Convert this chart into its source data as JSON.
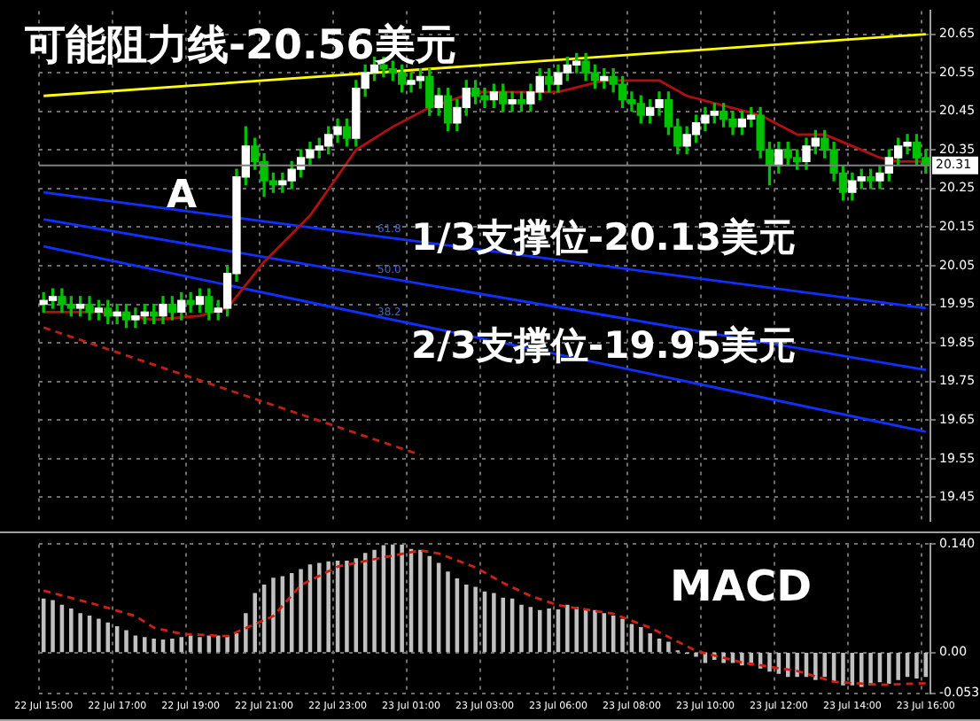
{
  "chart_data": [
    {
      "type": "candlestick",
      "color": "#00c000",
      "colors": [
        "#ffffff",
        "#ffffff",
        "#00c000",
        "#00c000",
        "#ffffff",
        "#00c000",
        "#ffffff",
        "#00c000",
        "#ffffff",
        "#00c000",
        "#ffffff",
        "#ffffff",
        "#00c000",
        "#ffffff",
        "#00c000",
        "#ffffff",
        "#00c000",
        "#ffffff",
        "#00c000",
        "#ffffff",
        "#ffffff",
        "#ffffff",
        "#ffffff",
        "#00c000",
        "#00c000",
        "#00c000",
        "#ffffff",
        "#ffffff",
        "#ffffff",
        "#ffffff",
        "#ffffff",
        "#ffffff",
        "#ffffff",
        "#00c000",
        "#ffffff",
        "#ffffff",
        "#ffffff",
        "#00c000",
        "#00c000",
        "#00c000",
        "#ffffff",
        "#ffffff",
        "#00c000",
        "#ffffff",
        "#00c000",
        "#ffffff",
        "#ffffff",
        "#00c000",
        "#00c000",
        "#ffffff",
        "#00c000",
        "#ffffff",
        "#00c000",
        "#ffffff",
        "#ffffff",
        "#00c000",
        "#ffffff",
        "#ffffff",
        "#ffffff",
        "#00c000",
        "#00c000",
        "#ffffff",
        "#00c000",
        "#00c000",
        "#00c000",
        "#00c000",
        "#ffffff",
        "#ffffff",
        "#00c000",
        "#00c000",
        "#ffffff",
        "#ffffff",
        "#ffffff",
        "#ffffff",
        "#00c000",
        "#00c000",
        "#ffffff",
        "#ffffff",
        "#00c000",
        "#00c000",
        "#ffffff",
        "#00c000",
        "#00c000",
        "#ffffff",
        "#ffffff",
        "#00c000",
        "#00c000",
        "#00c000",
        "#ffffff",
        "#ffffff",
        "#00c000",
        "#ffffff",
        "#ffffff",
        "#ffffff",
        "#ffffff",
        "#00c000",
        "#00c000"
      ],
      "categories": [
        null,
        null,
        null,
        null,
        null,
        null,
        null,
        null,
        null,
        null,
        null,
        null,
        null,
        null,
        null,
        null,
        null,
        null,
        null,
        null,
        null,
        null,
        null,
        null,
        null,
        null,
        null,
        null,
        null,
        null,
        null,
        null,
        null,
        null,
        null,
        null,
        null,
        null,
        null,
        null,
        null,
        null,
        null,
        null,
        null,
        null,
        null,
        null,
        null,
        null,
        null,
        null,
        null,
        null,
        null,
        null,
        null,
        null,
        null,
        null,
        null,
        null,
        null,
        null,
        null,
        null,
        null,
        null,
        null,
        null,
        null,
        null,
        null,
        null,
        null,
        null,
        null,
        null,
        null,
        null,
        null,
        null,
        null,
        null,
        null,
        null,
        null,
        null,
        null,
        null,
        null,
        null,
        null,
        null,
        null,
        null,
        null
      ],
      "ohlc": [
        [
          19.95,
          19.98,
          19.93,
          19.96
        ],
        [
          19.96,
          19.99,
          19.94,
          19.97
        ],
        [
          19.97,
          19.99,
          19.93,
          19.95
        ],
        [
          19.95,
          19.97,
          19.92,
          19.94
        ],
        [
          19.94,
          19.97,
          19.92,
          19.95
        ],
        [
          19.95,
          19.97,
          19.91,
          19.93
        ],
        [
          19.93,
          19.96,
          19.91,
          19.94
        ],
        [
          19.94,
          19.96,
          19.9,
          19.92
        ],
        [
          19.92,
          19.95,
          19.9,
          19.93
        ],
        [
          19.93,
          19.95,
          19.89,
          19.91
        ],
        [
          19.91,
          19.94,
          19.89,
          19.92
        ],
        [
          19.92,
          19.95,
          19.9,
          19.93
        ],
        [
          19.93,
          19.95,
          19.9,
          19.92
        ],
        [
          19.92,
          19.97,
          19.9,
          19.95
        ],
        [
          19.95,
          19.97,
          19.91,
          19.93
        ],
        [
          19.93,
          19.98,
          19.91,
          19.96
        ],
        [
          19.96,
          19.98,
          19.93,
          19.95
        ],
        [
          19.95,
          19.99,
          19.93,
          19.97
        ],
        [
          19.97,
          19.99,
          19.91,
          19.93
        ],
        [
          19.93,
          19.96,
          19.91,
          19.94
        ],
        [
          19.94,
          20.05,
          19.92,
          20.03
        ],
        [
          20.03,
          20.3,
          20.01,
          20.28
        ],
        [
          20.28,
          20.41,
          20.26,
          20.36
        ],
        [
          20.36,
          20.38,
          20.3,
          20.32
        ],
        [
          20.32,
          20.34,
          20.23,
          20.27
        ],
        [
          20.27,
          20.29,
          20.24,
          20.26
        ],
        [
          20.26,
          20.29,
          20.24,
          20.27
        ],
        [
          20.27,
          20.32,
          20.25,
          20.3
        ],
        [
          20.3,
          20.35,
          20.28,
          20.33
        ],
        [
          20.33,
          20.37,
          20.31,
          20.35
        ],
        [
          20.35,
          20.38,
          20.33,
          20.36
        ],
        [
          20.36,
          20.41,
          20.34,
          20.39
        ],
        [
          20.39,
          20.43,
          20.37,
          20.41
        ],
        [
          20.41,
          20.43,
          20.36,
          20.38
        ],
        [
          20.38,
          20.53,
          20.36,
          20.51
        ],
        [
          20.51,
          20.57,
          20.49,
          20.55
        ],
        [
          20.55,
          20.59,
          20.53,
          20.57
        ],
        [
          20.57,
          20.59,
          20.54,
          20.56
        ],
        [
          20.56,
          20.58,
          20.53,
          20.55
        ],
        [
          20.55,
          20.57,
          20.5,
          20.52
        ],
        [
          20.52,
          20.55,
          20.5,
          20.53
        ],
        [
          20.53,
          20.56,
          20.51,
          20.54
        ],
        [
          20.54,
          20.56,
          20.44,
          20.46
        ],
        [
          20.46,
          20.51,
          20.44,
          20.49
        ],
        [
          20.49,
          20.51,
          20.4,
          20.42
        ],
        [
          20.42,
          20.48,
          20.4,
          20.46
        ],
        [
          20.46,
          20.53,
          20.44,
          20.51
        ],
        [
          20.51,
          20.53,
          20.47,
          20.49
        ],
        [
          20.49,
          20.51,
          20.46,
          20.48
        ],
        [
          20.48,
          20.52,
          20.46,
          20.5
        ],
        [
          20.5,
          20.52,
          20.45,
          20.47
        ],
        [
          20.47,
          20.5,
          20.45,
          20.48
        ],
        [
          20.48,
          20.5,
          20.45,
          20.47
        ],
        [
          20.47,
          20.52,
          20.45,
          20.5
        ],
        [
          20.5,
          20.56,
          20.48,
          20.54
        ],
        [
          20.54,
          20.56,
          20.5,
          20.52
        ],
        [
          20.52,
          20.57,
          20.5,
          20.55
        ],
        [
          20.55,
          20.59,
          20.53,
          20.57
        ],
        [
          20.57,
          20.6,
          20.55,
          20.58
        ],
        [
          20.58,
          20.6,
          20.53,
          20.55
        ],
        [
          20.55,
          20.57,
          20.51,
          20.53
        ],
        [
          20.53,
          20.56,
          20.51,
          20.54
        ],
        [
          20.54,
          20.56,
          20.5,
          20.52
        ],
        [
          20.52,
          20.54,
          20.46,
          20.48
        ],
        [
          20.48,
          20.5,
          20.45,
          20.47
        ],
        [
          20.47,
          20.49,
          20.42,
          20.44
        ],
        [
          20.44,
          20.48,
          20.42,
          20.46
        ],
        [
          20.46,
          20.5,
          20.44,
          20.48
        ],
        [
          20.48,
          20.5,
          20.39,
          20.41
        ],
        [
          20.41,
          20.43,
          20.34,
          20.36
        ],
        [
          20.36,
          20.41,
          20.34,
          20.39
        ],
        [
          20.39,
          20.44,
          20.37,
          20.42
        ],
        [
          20.42,
          20.46,
          20.4,
          20.44
        ],
        [
          20.44,
          20.47,
          20.42,
          20.45
        ],
        [
          20.45,
          20.47,
          20.41,
          20.43
        ],
        [
          20.43,
          20.45,
          20.39,
          20.41
        ],
        [
          20.41,
          20.45,
          20.39,
          20.43
        ],
        [
          20.43,
          20.46,
          20.41,
          20.44
        ],
        [
          20.44,
          20.46,
          20.33,
          20.35
        ],
        [
          20.35,
          20.37,
          20.26,
          20.31
        ],
        [
          20.31,
          20.37,
          20.29,
          20.35
        ],
        [
          20.35,
          20.37,
          20.31,
          20.33
        ],
        [
          20.33,
          20.35,
          20.3,
          20.32
        ],
        [
          20.32,
          20.38,
          20.3,
          20.36
        ],
        [
          20.36,
          20.4,
          20.34,
          20.38
        ],
        [
          20.38,
          20.4,
          20.33,
          20.35
        ],
        [
          20.35,
          20.37,
          20.27,
          20.29
        ],
        [
          20.29,
          20.31,
          20.22,
          20.24
        ],
        [
          20.24,
          20.29,
          20.22,
          20.27
        ],
        [
          20.27,
          20.3,
          20.25,
          20.28
        ],
        [
          20.28,
          20.3,
          20.25,
          20.27
        ],
        [
          20.27,
          20.31,
          20.25,
          20.29
        ],
        [
          20.29,
          20.35,
          20.27,
          20.33
        ],
        [
          20.33,
          20.38,
          20.31,
          20.36
        ],
        [
          20.36,
          20.39,
          20.34,
          20.37
        ],
        [
          20.37,
          20.39,
          20.31,
          20.33
        ],
        [
          20.33,
          20.35,
          20.29,
          20.31
        ]
      ],
      "series": [
        {
          "type": "line",
          "color": "#b01010",
          "values": [
            19.93,
            null,
            null,
            null,
            null,
            null,
            19.93,
            null,
            null,
            null,
            null,
            null,
            19.91,
            null,
            null,
            null,
            null,
            19.92,
            null,
            null,
            19.94,
            null,
            null,
            null,
            20.06,
            null,
            null,
            null,
            null,
            20.18,
            null,
            null,
            null,
            null,
            20.35,
            null,
            null,
            null,
            20.41,
            null,
            null,
            null,
            20.46,
            null,
            null,
            null,
            null,
            20.5,
            null,
            null,
            null,
            20.5,
            null,
            null,
            null,
            null,
            20.5,
            null,
            null,
            null,
            null,
            20.53,
            null,
            null,
            null,
            null,
            null,
            20.53,
            null,
            null,
            20.49,
            null,
            null,
            null,
            null,
            null,
            null,
            null,
            20.44,
            null,
            null,
            null,
            20.39,
            null,
            null,
            20.39,
            null,
            null,
            20.36,
            null,
            null,
            20.33,
            null,
            20.32,
            null,
            null,
            20.32
          ]
        },
        {
          "type": "line",
          "color": "#ffff00",
          "values": [
            20.49,
            null,
            null,
            null,
            null,
            null,
            null,
            null,
            null,
            null,
            null,
            null,
            null,
            null,
            null,
            null,
            null,
            null,
            null,
            null,
            null,
            null,
            null,
            null,
            null,
            null,
            null,
            null,
            null,
            null,
            null,
            null,
            null,
            null,
            null,
            null,
            null,
            null,
            null,
            null,
            null,
            null,
            null,
            null,
            null,
            null,
            null,
            null,
            null,
            null,
            null,
            null,
            null,
            null,
            null,
            null,
            null,
            null,
            null,
            null,
            null,
            null,
            null,
            null,
            null,
            null,
            null,
            null,
            null,
            null,
            null,
            null,
            null,
            null,
            null,
            null,
            null,
            null,
            null,
            null,
            null,
            null,
            null,
            null,
            null,
            null,
            null,
            null,
            null,
            null,
            null,
            null,
            null,
            null,
            null,
            null,
            20.65
          ]
        },
        {
          "type": "line",
          "color": "#1030ff",
          "values": [
            20.24,
            null,
            null,
            null,
            null,
            null,
            null,
            null,
            null,
            null,
            null,
            null,
            null,
            null,
            null,
            null,
            null,
            null,
            null,
            null,
            null,
            null,
            null,
            null,
            null,
            null,
            null,
            null,
            null,
            null,
            null,
            null,
            null,
            null,
            null,
            null,
            null,
            null,
            null,
            null,
            null,
            null,
            null,
            null,
            null,
            null,
            null,
            null,
            null,
            null,
            null,
            null,
            null,
            null,
            null,
            null,
            null,
            null,
            null,
            null,
            null,
            null,
            null,
            null,
            null,
            null,
            null,
            null,
            null,
            null,
            null,
            null,
            null,
            null,
            null,
            null,
            null,
            null,
            null,
            null,
            null,
            null,
            null,
            null,
            null,
            null,
            null,
            null,
            null,
            null,
            null,
            null,
            null,
            null,
            null,
            null,
            19.94
          ]
        },
        {
          "type": "line",
          "color": "#1030ff",
          "values": [
            20.17,
            null,
            null,
            null,
            null,
            null,
            null,
            null,
            null,
            null,
            null,
            null,
            null,
            null,
            null,
            null,
            null,
            null,
            null,
            null,
            null,
            null,
            null,
            null,
            null,
            null,
            null,
            null,
            null,
            null,
            null,
            null,
            null,
            null,
            null,
            null,
            null,
            null,
            null,
            null,
            null,
            null,
            null,
            null,
            null,
            null,
            null,
            null,
            null,
            null,
            null,
            null,
            null,
            null,
            null,
            null,
            null,
            null,
            null,
            null,
            null,
            null,
            null,
            null,
            null,
            null,
            null,
            null,
            null,
            null,
            null,
            null,
            null,
            null,
            null,
            null,
            null,
            null,
            null,
            null,
            null,
            null,
            null,
            null,
            null,
            null,
            null,
            null,
            null,
            null,
            null,
            null,
            null,
            null,
            null,
            null,
            19.78
          ]
        },
        {
          "type": "line",
          "color": "#1030ff",
          "values": [
            20.1,
            null,
            null,
            null,
            null,
            null,
            null,
            null,
            null,
            null,
            null,
            null,
            null,
            null,
            null,
            null,
            null,
            null,
            null,
            null,
            null,
            null,
            null,
            null,
            null,
            null,
            null,
            null,
            null,
            null,
            null,
            null,
            null,
            null,
            null,
            null,
            null,
            null,
            null,
            null,
            null,
            null,
            null,
            null,
            null,
            null,
            null,
            null,
            null,
            null,
            null,
            null,
            null,
            null,
            null,
            null,
            null,
            null,
            null,
            null,
            null,
            null,
            null,
            null,
            null,
            null,
            null,
            null,
            null,
            null,
            null,
            null,
            null,
            null,
            null,
            null,
            null,
            null,
            null,
            null,
            null,
            null,
            null,
            null,
            null,
            null,
            null,
            null,
            null,
            null,
            null,
            null,
            null,
            null,
            null,
            null,
            19.62
          ]
        },
        {
          "type": "line",
          "color": "#c02010",
          "line_style": "dashed",
          "values": [
            19.89,
            null,
            null,
            null,
            null,
            null,
            null,
            null,
            null,
            null,
            null,
            null,
            null,
            null,
            null,
            null,
            null,
            null,
            null,
            null,
            null,
            null,
            null,
            null,
            null,
            null,
            null,
            null,
            null,
            null,
            null,
            null,
            null,
            null,
            null,
            null,
            null,
            null,
            null,
            null,
            null,
            19.56,
            null,
            null,
            null,
            null,
            null,
            null,
            null,
            null,
            null,
            null,
            null,
            null,
            null,
            null,
            null,
            null,
            null,
            null,
            null,
            null,
            null,
            null,
            null,
            null,
            null,
            null,
            null,
            null,
            null,
            null,
            null,
            null,
            null,
            null,
            null,
            null,
            null,
            null,
            null,
            null,
            null,
            null,
            null,
            null,
            null,
            null,
            null,
            null,
            null,
            null,
            null,
            null,
            null,
            null,
            null
          ]
        }
      ],
      "ylim": [
        19.39,
        20.71
      ],
      "yticks": [
        19.45,
        19.55,
        19.65,
        19.75,
        19.85,
        19.95,
        20.05,
        20.15,
        20.25,
        20.35,
        20.45,
        20.55,
        20.65
      ],
      "grid": true,
      "tick_labels": "y",
      "ref_lines": [
        {
          "axis": "y",
          "value": 20.31,
          "label": "20.31",
          "color": "#808080"
        }
      ],
      "annotations": [
        "可能阻力线-20.56美元",
        "A",
        "1/3支撑位-20.13美元",
        "2/3支撑位-19.95美元",
        "61.8",
        "50.0",
        "38.2"
      ]
    },
    {
      "type": "bar",
      "title": "MACD",
      "categories": [
        "22 Jul 15:00",
        null,
        null,
        null,
        null,
        null,
        null,
        null,
        "22 Jul 17:00",
        null,
        null,
        null,
        null,
        null,
        null,
        null,
        "22 Jul 19:00",
        null,
        null,
        null,
        null,
        null,
        null,
        null,
        "22 Jul 21:00",
        null,
        null,
        null,
        null,
        null,
        null,
        null,
        "22 Jul 23:00",
        null,
        null,
        null,
        null,
        null,
        null,
        null,
        "23 Jul 01:00",
        null,
        null,
        null,
        null,
        null,
        null,
        null,
        "23 Jul 03:00",
        null,
        null,
        null,
        null,
        null,
        null,
        null,
        "23 Jul 06:00",
        null,
        null,
        null,
        null,
        null,
        null,
        null,
        "23 Jul 08:00",
        null,
        null,
        null,
        null,
        null,
        null,
        null,
        "23 Jul 10:00",
        null,
        null,
        null,
        null,
        null,
        null,
        null,
        "23 Jul 12:00",
        null,
        null,
        null,
        null,
        null,
        null,
        null,
        "23 Jul 14:00",
        null,
        null,
        null,
        null,
        null,
        null,
        null,
        "23 Jul 16:00"
      ],
      "series": [
        {
          "type": "bar",
          "color": "#c0c0c0",
          "values": [
            0.069,
            0.067,
            0.061,
            0.056,
            0.05,
            0.047,
            0.043,
            0.038,
            0.033,
            0.028,
            0.021,
            0.019,
            0.017,
            0.016,
            0.017,
            0.019,
            0.021,
            0.019,
            0.021,
            0.021,
            0.021,
            0.024,
            0.05,
            0.076,
            0.087,
            0.096,
            0.098,
            0.102,
            0.107,
            0.113,
            0.115,
            0.117,
            0.118,
            0.118,
            0.121,
            0.128,
            0.132,
            0.138,
            0.139,
            0.139,
            0.133,
            0.132,
            0.124,
            0.115,
            0.104,
            0.095,
            0.087,
            0.084,
            0.078,
            0.076,
            0.07,
            0.069,
            0.061,
            0.058,
            0.054,
            0.056,
            0.055,
            0.061,
            0.058,
            0.056,
            0.054,
            0.05,
            0.047,
            0.043,
            0.036,
            0.032,
            0.024,
            0.017,
            0.013,
            0.002,
            -0.001,
            -0.005,
            -0.013,
            -0.009,
            -0.013,
            -0.013,
            -0.016,
            -0.016,
            -0.02,
            -0.024,
            -0.027,
            -0.031,
            -0.031,
            -0.031,
            -0.035,
            -0.031,
            -0.038,
            -0.042,
            -0.042,
            -0.044,
            -0.042,
            -0.038,
            -0.04,
            -0.035,
            -0.031,
            -0.033,
            -0.031
          ]
        },
        {
          "type": "line",
          "color": "#d02010",
          "line_style": "dashed",
          "values": [
            0.08,
            null,
            null,
            null,
            null,
            null,
            0.061,
            null,
            null,
            null,
            0.047,
            null,
            0.032,
            null,
            null,
            0.024,
            null,
            null,
            null,
            null,
            0.021,
            null,
            null,
            null,
            null,
            0.047,
            null,
            null,
            0.087,
            null,
            null,
            null,
            0.111,
            null,
            null,
            null,
            null,
            0.123,
            null,
            null,
            null,
            0.132,
            null,
            0.128,
            null,
            null,
            null,
            0.11,
            null,
            null,
            0.09,
            null,
            null,
            0.073,
            null,
            null,
            0.061,
            null,
            null,
            null,
            null,
            null,
            0.05,
            null,
            null,
            null,
            0.032,
            null,
            null,
            null,
            null,
            0.002,
            null,
            null,
            null,
            null,
            -0.013,
            null,
            null,
            null,
            null,
            null,
            -0.024,
            null,
            null,
            null,
            -0.038,
            null,
            null,
            null,
            null,
            -0.042,
            null,
            null,
            null,
            null,
            -0.04
          ]
        }
      ],
      "ylim": [
        -0.053,
        0.14
      ],
      "yticks": [
        {
          "value": 0.14,
          "label": "0.140"
        },
        {
          "value": 0,
          "label": "0.00"
        },
        {
          "value": -0.053,
          "label": "-0.053"
        }
      ],
      "grid": true
    }
  ]
}
